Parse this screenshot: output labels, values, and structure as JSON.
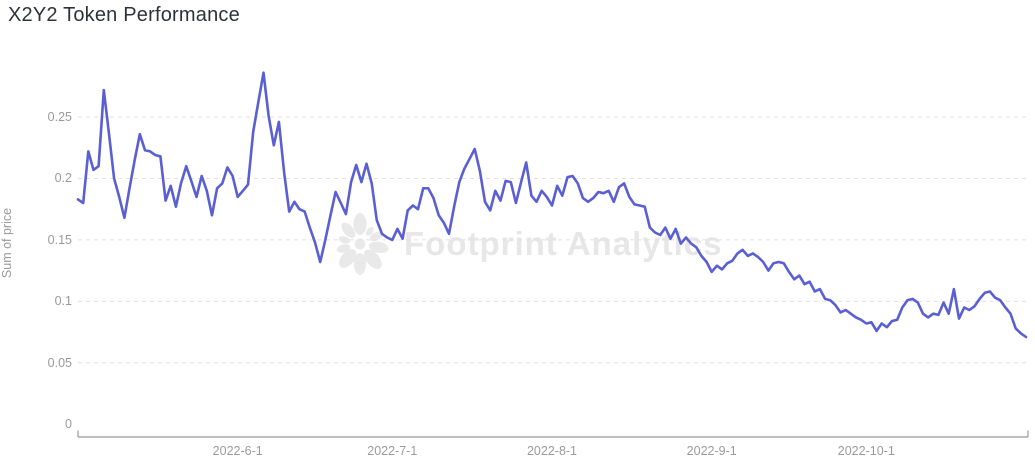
{
  "title": "X2Y2 Token Performance",
  "watermark": {
    "text": "Footprint Analytics"
  },
  "colors": {
    "line": "#5a5fd3",
    "grid": "#e1e1e1",
    "axis": "#999999",
    "tick_label": "#9a9a9a",
    "title": "#2f3338",
    "watermark": "#e8e8e8",
    "background": "#ffffff"
  },
  "chart_data": {
    "type": "line",
    "title": "X2Y2 Token Performance",
    "xlabel": "",
    "ylabel": "Sum of price",
    "x_start_date": "2022-5-1",
    "x_end_date": "2022-11-1",
    "point_interval": "daily",
    "ylim": [
      0,
      0.29
    ],
    "grid": "horizontal-dashed",
    "legend_position": "none",
    "y_ticks": [
      {
        "label": "0",
        "value": 0
      },
      {
        "label": "0.05",
        "value": 0.05
      },
      {
        "label": "0.1",
        "value": 0.1
      },
      {
        "label": "0.15",
        "value": 0.15
      },
      {
        "label": "0.2",
        "value": 0.2
      },
      {
        "label": "0.25",
        "value": 0.25
      }
    ],
    "x_ticks": [
      {
        "label": "2022-6-1",
        "day_index": 31
      },
      {
        "label": "2022-7-1",
        "day_index": 61
      },
      {
        "label": "2022-8-1",
        "day_index": 92
      },
      {
        "label": "2022-9-1",
        "day_index": 123
      },
      {
        "label": "2022-10-1",
        "day_index": 153
      }
    ],
    "series": [
      {
        "name": "Sum of price",
        "color": "#5a5fd3",
        "values": [
          0.183,
          0.18,
          0.222,
          0.207,
          0.21,
          0.272,
          0.237,
          0.2,
          0.185,
          0.168,
          0.192,
          0.215,
          0.236,
          0.223,
          0.222,
          0.219,
          0.218,
          0.182,
          0.194,
          0.177,
          0.196,
          0.21,
          0.198,
          0.185,
          0.202,
          0.19,
          0.17,
          0.192,
          0.196,
          0.209,
          0.202,
          0.185,
          0.19,
          0.195,
          0.238,
          0.262,
          0.286,
          0.251,
          0.227,
          0.246,
          0.205,
          0.173,
          0.181,
          0.175,
          0.173,
          0.16,
          0.148,
          0.132,
          0.15,
          0.17,
          0.189,
          0.18,
          0.171,
          0.197,
          0.211,
          0.197,
          0.212,
          0.196,
          0.166,
          0.155,
          0.152,
          0.15,
          0.159,
          0.151,
          0.174,
          0.178,
          0.175,
          0.192,
          0.192,
          0.184,
          0.17,
          0.164,
          0.155,
          0.177,
          0.197,
          0.208,
          0.216,
          0.224,
          0.206,
          0.181,
          0.174,
          0.19,
          0.182,
          0.198,
          0.197,
          0.18,
          0.197,
          0.213,
          0.186,
          0.181,
          0.19,
          0.185,
          0.178,
          0.194,
          0.186,
          0.201,
          0.202,
          0.196,
          0.184,
          0.181,
          0.184,
          0.189,
          0.188,
          0.19,
          0.181,
          0.193,
          0.196,
          0.185,
          0.179,
          0.178,
          0.177,
          0.16,
          0.156,
          0.154,
          0.16,
          0.151,
          0.159,
          0.147,
          0.152,
          0.147,
          0.144,
          0.137,
          0.132,
          0.124,
          0.129,
          0.126,
          0.131,
          0.133,
          0.139,
          0.142,
          0.137,
          0.139,
          0.136,
          0.132,
          0.125,
          0.131,
          0.132,
          0.131,
          0.124,
          0.118,
          0.121,
          0.114,
          0.116,
          0.108,
          0.11,
          0.102,
          0.101,
          0.097,
          0.091,
          0.093,
          0.09,
          0.087,
          0.085,
          0.082,
          0.083,
          0.076,
          0.082,
          0.079,
          0.084,
          0.085,
          0.095,
          0.101,
          0.102,
          0.099,
          0.09,
          0.087,
          0.09,
          0.089,
          0.099,
          0.09,
          0.11,
          0.086,
          0.095,
          0.093,
          0.096,
          0.102,
          0.107,
          0.108,
          0.103,
          0.101,
          0.095,
          0.09,
          0.078,
          0.074,
          0.071
        ]
      }
    ]
  }
}
